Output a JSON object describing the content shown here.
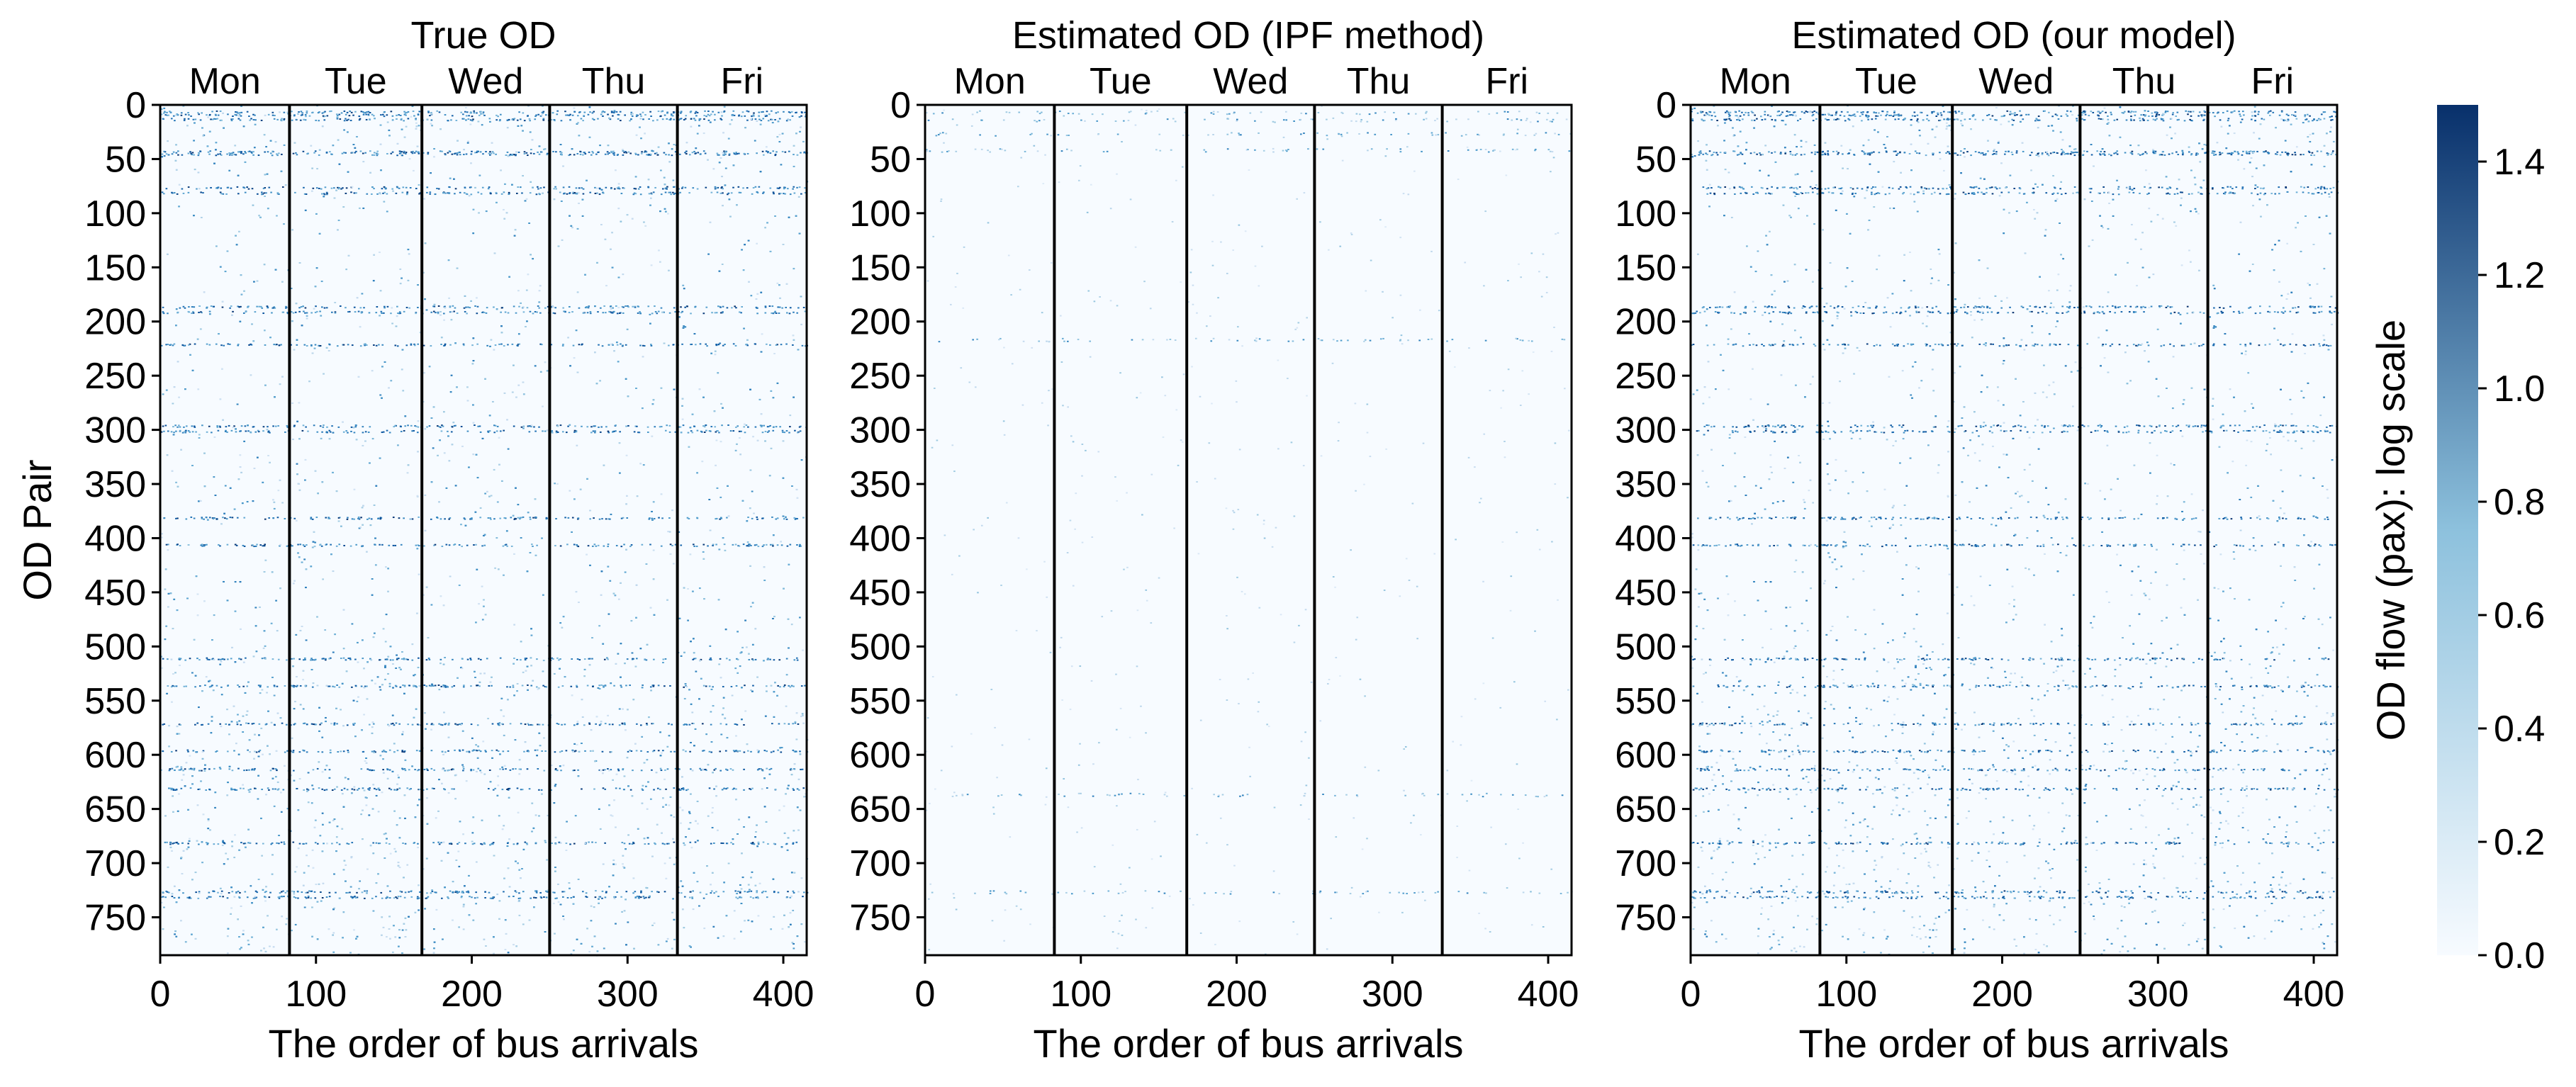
{
  "colors": {
    "cmap_low": "#f7fbff",
    "cmap_high": "#08306b",
    "separator": "#000000"
  },
  "chart_data": [
    {
      "type": "heatmap",
      "title": "True OD",
      "xlabel": "The order of bus arrivals",
      "ylabel": "OD Pair",
      "xlim": [
        0,
        415
      ],
      "ylim": [
        785,
        0
      ],
      "x_ticks": [
        0,
        100,
        200,
        300,
        400
      ],
      "y_ticks": [
        0,
        50,
        100,
        150,
        200,
        250,
        300,
        350,
        400,
        450,
        500,
        550,
        600,
        650,
        700,
        750
      ],
      "day_labels": [
        "Mon",
        "Tue",
        "Wed",
        "Thu",
        "Fri"
      ],
      "day_boundaries": [
        83,
        168,
        250,
        332
      ],
      "density": "high"
    },
    {
      "type": "heatmap",
      "title": "Estimated OD (IPF method)",
      "xlabel": "The order of bus arrivals",
      "ylabel": "",
      "xlim": [
        0,
        415
      ],
      "ylim": [
        785,
        0
      ],
      "x_ticks": [
        0,
        100,
        200,
        300,
        400
      ],
      "y_ticks": [
        0,
        50,
        100,
        150,
        200,
        250,
        300,
        350,
        400,
        450,
        500,
        550,
        600,
        650,
        700,
        750
      ],
      "day_labels": [
        "Mon",
        "Tue",
        "Wed",
        "Thu",
        "Fri"
      ],
      "day_boundaries": [
        83,
        168,
        250,
        332
      ],
      "density": "sparse"
    },
    {
      "type": "heatmap",
      "title": "Estimated OD (our model)",
      "xlabel": "The order of bus arrivals",
      "ylabel": "",
      "xlim": [
        0,
        415
      ],
      "ylim": [
        785,
        0
      ],
      "x_ticks": [
        0,
        100,
        200,
        300,
        400
      ],
      "y_ticks": [
        0,
        50,
        100,
        150,
        200,
        250,
        300,
        350,
        400,
        450,
        500,
        550,
        600,
        650,
        700,
        750
      ],
      "day_labels": [
        "Mon",
        "Tue",
        "Wed",
        "Thu",
        "Fri"
      ],
      "day_boundaries": [
        83,
        168,
        250,
        332
      ],
      "density": "high"
    }
  ],
  "colorbar": {
    "label": "OD flow (pax): log scale",
    "range": [
      0,
      1.5
    ],
    "ticks": [
      "0.0",
      "0.2",
      "0.4",
      "0.6",
      "0.8",
      "1.0",
      "1.2",
      "1.4"
    ],
    "tick_values": [
      0,
      0.2,
      0.4,
      0.6,
      0.8,
      1.0,
      1.2,
      1.4
    ]
  }
}
